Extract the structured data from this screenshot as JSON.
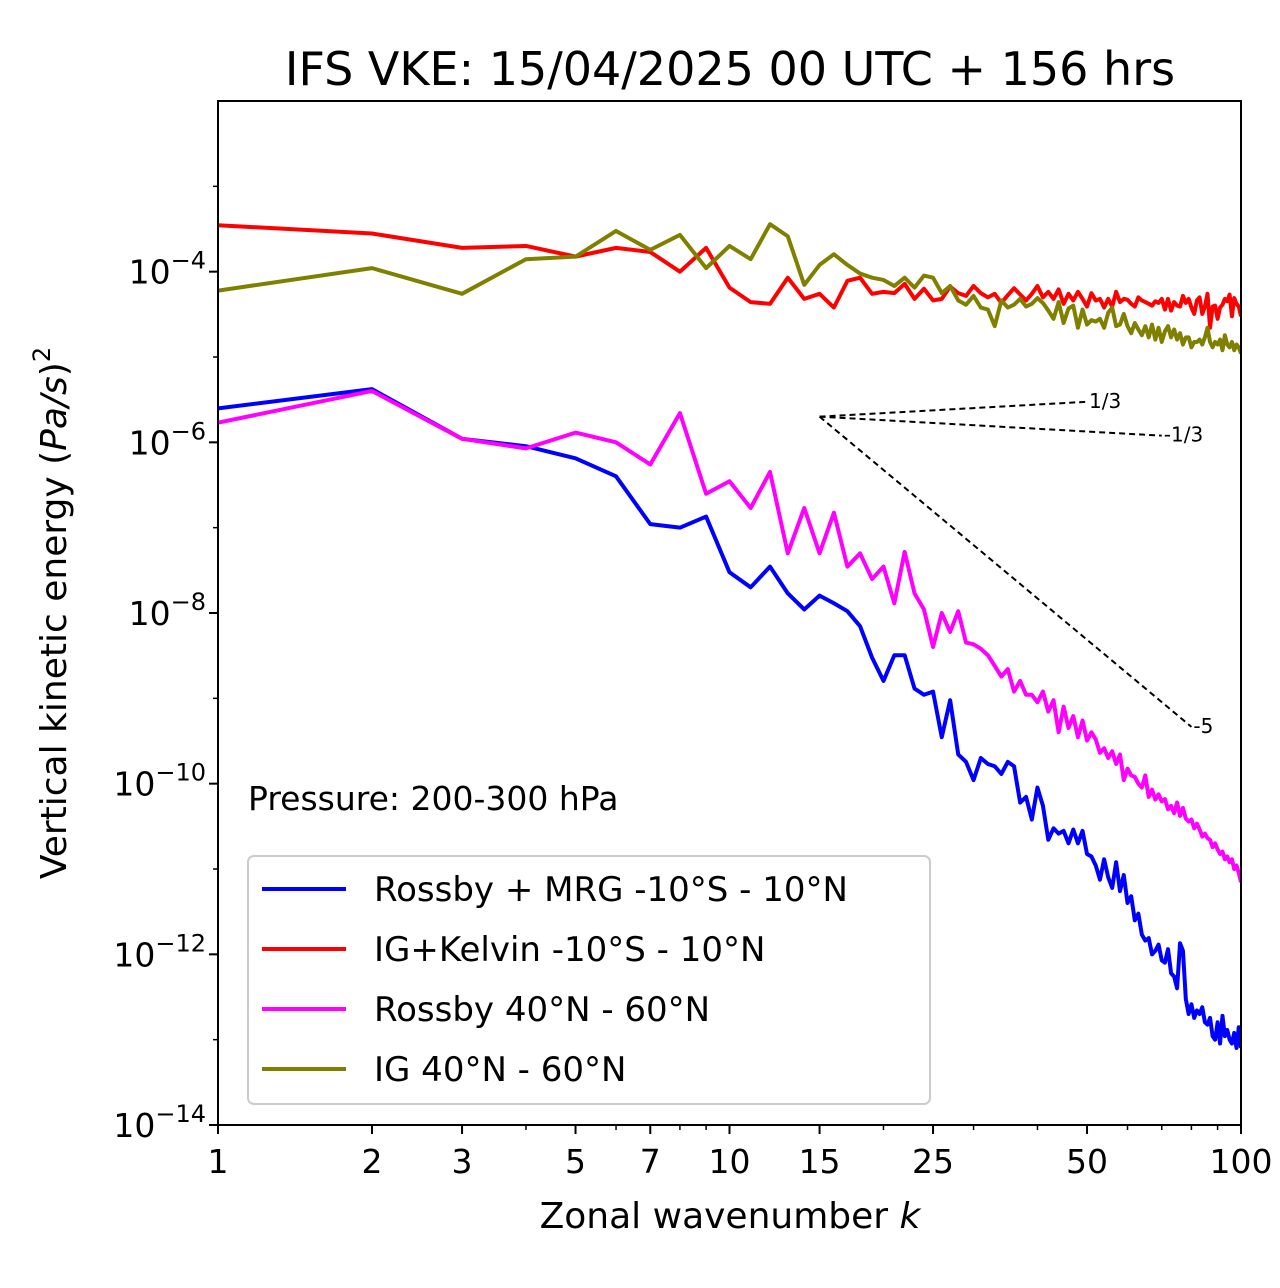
{
  "chart_data": {
    "type": "line",
    "title": "IFS VKE: 15/04/2025 00 UTC + 156 hrs",
    "xlabel_text": "Zonal wavenumber ",
    "xlabel_var": "k",
    "ylabel_text": "Vertical kinetic energy (",
    "ylabel_var": "Pa/s",
    "ylabel_close": ")",
    "ylabel_sup": "2",
    "x_scale": "log",
    "y_scale": "log",
    "xlim": [
      1,
      100
    ],
    "ylim": [
      1e-14,
      0.01
    ],
    "x_ticks": [
      1,
      2,
      3,
      5,
      7,
      10,
      15,
      25,
      50,
      100
    ],
    "x_tick_labels": [
      "1",
      "2",
      "3",
      "5",
      "7",
      "10",
      "15",
      "25",
      "50",
      "100"
    ],
    "y_ticks": [
      -4,
      -6,
      -8,
      -10,
      -12,
      -14
    ],
    "y_tick_base": "10",
    "y_tick_exps": [
      "−4",
      "−6",
      "−8",
      "−10",
      "−12",
      "−14"
    ],
    "grid": false,
    "legend_position": "lower-left",
    "annotation": "Pressure: 200-300 hPa",
    "slope_lines": [
      {
        "label": "1/3",
        "slope": 0.3333,
        "x0": 15,
        "y0": 2e-06,
        "x1": 50
      },
      {
        "label": "-1/3",
        "slope": -0.3333,
        "x0": 15,
        "y0": 2e-06,
        "x1": 70
      },
      {
        "label": "-5",
        "slope": -5,
        "x0": 15,
        "y0": 2e-06,
        "x1": 80
      }
    ],
    "series": [
      {
        "name": "Rossby + MRG -10°S - 10°N",
        "color": "#0000ff",
        "values": [
          2.5e-06,
          4.2e-06,
          1.1e-06,
          9e-07,
          6.5e-07,
          4e-07,
          1.1e-07,
          1e-07,
          1.35e-07,
          3e-08,
          2e-08,
          3.5e-08,
          1.7e-08,
          1.1e-08,
          1.6e-08,
          1.3e-08,
          1.05e-08,
          7e-09,
          3e-09,
          1.6e-09,
          3.2e-09,
          3.2e-09,
          1.3e-09,
          1.1e-09,
          1.2e-09,
          3.5e-10,
          9.5e-10,
          2.2e-10,
          1.8e-10,
          1.1e-10,
          2e-10,
          1.7e-10,
          1.6e-10,
          1.3e-10,
          1.8e-10,
          1.6e-10,
          6e-11,
          7e-11,
          3.8e-11,
          9e-11,
          5.5e-11,
          2.2e-11,
          3e-11,
          2.6e-11,
          2.8e-11,
          2e-11,
          2.9e-11,
          2e-11,
          2.8e-11,
          1.5e-11,
          1.4e-11,
          1.1e-11,
          7.5e-12,
          1.3e-11,
          8e-12,
          6e-12,
          1.2e-11,
          5.5e-12,
          8.5e-12,
          4e-12,
          4.8e-12,
          2.5e-12,
          3e-12,
          1.7e-12,
          1.45e-12,
          1.55e-12,
          1e-12,
          1.1e-12,
          1.3e-12,
          8.5e-13,
          8e-13,
          1.15e-12,
          6e-13,
          5.5e-13,
          4e-13,
          1.35e-12,
          1.1e-12,
          3e-13,
          2e-13,
          2.6e-13,
          1.8e-13,
          2.2e-13,
          2e-13,
          2.4e-13,
          1.6e-13,
          1.5e-13,
          1.8e-13,
          1.1e-13,
          1e-13,
          1.6e-13,
          9e-14,
          1.9e-13,
          1.1e-13,
          1.3e-13,
          1e-13,
          9e-14,
          1.2e-13,
          8e-14,
          1.4e-13,
          8e-14
        ]
      },
      {
        "name": "IG+Kelvin -10°S - 10°N",
        "color": "#ff0000",
        "values": [
          0.00035,
          0.00028,
          0.00019,
          0.0002,
          0.00015,
          0.00019,
          0.00017,
          0.0001,
          0.00019,
          6.5e-05,
          4.4e-05,
          4.2e-05,
          8.5e-05,
          4.8e-05,
          5.5e-05,
          3.8e-05,
          7.8e-05,
          8.5e-05,
          5.5e-05,
          5.8e-05,
          5.6e-05,
          7.2e-05,
          4.8e-05,
          6.3e-05,
          4.6e-05,
          4.8e-05,
          6.7e-05,
          5.6e-05,
          5.2e-05,
          6.8e-05,
          5.6e-05,
          5e-05,
          5.5e-05,
          4.3e-05,
          5.3e-05,
          6.4e-05,
          5.4e-05,
          4.6e-05,
          5.5e-05,
          6.8e-05,
          5e-05,
          5.8e-05,
          4.8e-05,
          6.2e-05,
          4.2e-05,
          5.5e-05,
          4.6e-05,
          5.8e-05,
          4.8e-05,
          3.9e-05,
          5.6e-05,
          4.6e-05,
          4.8e-05,
          3.8e-05,
          4.8e-05,
          3.9e-05,
          5.8e-05,
          4.4e-05,
          4.8e-05,
          4.7e-05,
          4.2e-05,
          3.9e-05,
          5e-05,
          4.6e-05,
          4.4e-05,
          4.2e-05,
          4e-05,
          4.5e-05,
          4.3e-05,
          4.8e-05,
          3.6e-05,
          4.8e-05,
          3.5e-05,
          4.4e-05,
          4e-05,
          3.9e-05,
          5.2e-05,
          4.3e-05,
          4.8e-05,
          3.8e-05,
          3.2e-05,
          4.6e-05,
          5e-05,
          3.2e-05,
          3.9e-05,
          5.5e-05,
          2.2e-05,
          3.9e-05,
          4e-05,
          2.8e-05,
          3.8e-05,
          4.1e-05,
          4.8e-05,
          4.5e-05,
          5.4e-05,
          3e-05,
          4.9e-05,
          4.2e-05,
          3.9e-05,
          3e-05
        ]
      },
      {
        "name": "Rossby 40°N - 60°N",
        "color": "#ff00ff",
        "values": [
          1.7e-06,
          4e-06,
          1.1e-06,
          8.5e-07,
          1.3e-06,
          1e-06,
          5.5e-07,
          2.2e-06,
          2.5e-07,
          3.5e-07,
          1.7e-07,
          4.5e-07,
          5e-08,
          1.7e-07,
          5e-08,
          1.5e-07,
          3.5e-08,
          5e-08,
          2.5e-08,
          3.5e-08,
          1.3e-08,
          5.2e-08,
          1.7e-08,
          1.1e-08,
          4e-09,
          1e-08,
          6e-09,
          1.05e-08,
          4.5e-09,
          4.3e-09,
          3.8e-09,
          3.2e-09,
          2.4e-09,
          1.8e-09,
          2.2e-09,
          1.2e-09,
          1.6e-09,
          1.1e-09,
          1.1e-09,
          9e-10,
          1.2e-09,
          7e-10,
          9.5e-10,
          4e-10,
          8e-10,
          4.5e-10,
          6.2e-10,
          3.5e-10,
          5.5e-10,
          3.2e-10,
          4e-10,
          3.3e-10,
          2.3e-10,
          2.6e-10,
          2e-10,
          2.4e-10,
          1.7e-10,
          2.2e-10,
          1.1e-10,
          1.5e-10,
          1.25e-10,
          1.2e-10,
          1e-10,
          9e-11,
          1.25e-10,
          7e-11,
          8.5e-11,
          6.5e-11,
          7.5e-11,
          6.2e-11,
          6.6e-11,
          5e-11,
          5.5e-11,
          4.5e-11,
          6e-11,
          4.2e-11,
          5.2e-11,
          3.9e-11,
          3.6e-11,
          3.8e-11,
          3e-11,
          3.4e-11,
          2.9e-11,
          2.4e-11,
          2.6e-11,
          2.3e-11,
          2.2e-11,
          1.8e-11,
          2e-11,
          1.7e-11,
          1.5e-11,
          1.6e-11,
          1.3e-11,
          1.4e-11,
          1.2e-11,
          1.3e-11,
          1e-11,
          1.1e-11,
          9e-12,
          7e-12
        ]
      },
      {
        "name": "IG 40°N - 60°N",
        "color": "#808000",
        "values": [
          6e-05,
          0.00011,
          5.5e-05,
          0.00014,
          0.00015,
          0.0003,
          0.00018,
          0.00027,
          0.00011,
          0.0002,
          0.00014,
          0.00036,
          0.00026,
          7e-05,
          0.00012,
          0.00016,
          0.00012,
          9.5e-05,
          8.5e-05,
          8e-05,
          6.8e-05,
          8.5e-05,
          6.5e-05,
          9e-05,
          8.5e-05,
          5.6e-05,
          6.8e-05,
          4.6e-05,
          4.1e-05,
          5.2e-05,
          3.8e-05,
          3.6e-05,
          2.3e-05,
          4.6e-05,
          3.8e-05,
          4.1e-05,
          4.8e-05,
          3.9e-05,
          4.2e-05,
          4.9e-05,
          4.3e-05,
          3.5e-05,
          2.8e-05,
          4.4e-05,
          2.5e-05,
          3.7e-05,
          4e-05,
          2.2e-05,
          3.6e-05,
          2.4e-05,
          2.7e-05,
          2.6e-05,
          2.8e-05,
          2.2e-05,
          3.3e-05,
          3.8e-05,
          2.3e-05,
          2.4e-05,
          3.2e-05,
          2.3e-05,
          1.9e-05,
          2.5e-05,
          2.1e-05,
          1.8e-05,
          2.3e-05,
          1.7e-05,
          2.4e-05,
          1.6e-05,
          2.2e-05,
          1.5e-05,
          2e-05,
          2.3e-05,
          1.7e-05,
          2.1e-05,
          1.6e-05,
          1.9e-05,
          1.4e-05,
          1.7e-05,
          1.7e-05,
          1.3e-05,
          1.5e-05,
          1.5e-05,
          1.6e-05,
          1.4e-05,
          1.7e-05,
          2.2e-05,
          1.5e-05,
          1.3e-05,
          1.5e-05,
          1.4e-05,
          1.6e-05,
          1.2e-05,
          1.8e-05,
          1.4e-05,
          1.3e-05,
          1.5e-05,
          1.2e-05,
          1.4e-05,
          1.3e-05,
          1.1e-05
        ]
      }
    ]
  }
}
